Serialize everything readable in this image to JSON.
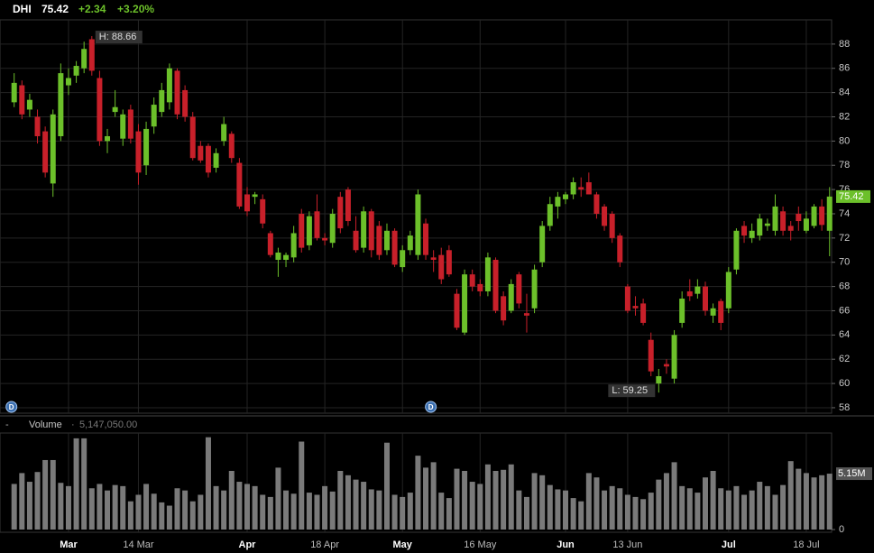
{
  "chart_data": [
    {
      "type": "candlestick",
      "title": "DHI",
      "price_text": "75.42",
      "change": "+2.34",
      "change_pct": "+3.20%",
      "high_annotation": "H: 88.66",
      "low_annotation": "L: 59.25",
      "up_color": "#6cc02a",
      "down_color": "#c8202a",
      "dividend_markers": {
        "label": "D",
        "at": [
          0,
          54
        ]
      },
      "open": [
        83.2,
        84.6,
        82.6,
        82.0,
        80.8,
        76.5,
        80.4,
        84.6,
        85.4,
        86.0,
        88.4,
        85.2,
        80.0,
        82.4,
        80.2,
        82.6,
        80.8,
        78.0,
        81.2,
        82.4,
        83.2,
        85.8,
        84.2,
        82.0,
        79.6,
        79.6,
        77.8,
        80.0,
        80.6,
        78.2,
        75.6,
        75.4,
        75.2,
        72.4,
        70.2,
        70.2,
        70.4,
        74.0,
        71.4,
        74.2,
        72.0,
        71.6,
        75.4,
        76.0,
        72.6,
        71.2,
        74.2,
        73.0,
        71.0,
        72.6,
        69.6,
        71.0,
        70.6,
        73.2,
        70.4,
        70.6,
        71.0,
        67.4,
        64.2,
        69.0,
        68.2,
        67.6,
        70.2,
        67.2,
        66.0,
        69.0,
        65.8,
        66.2,
        70.0,
        73.0,
        74.6,
        75.2,
        75.6,
        76.2,
        76.6,
        75.6,
        74.6,
        74.0,
        72.2,
        68.0,
        66.4,
        66.6,
        63.6,
        60.0,
        61.6,
        60.4,
        65.0,
        67.6,
        67.4,
        68.0,
        65.6,
        66.8,
        66.2,
        69.4,
        73.0,
        72.0,
        72.2,
        73.0,
        72.6,
        74.2,
        73.0,
        74.0,
        72.6,
        73.0,
        74.6,
        72.6
      ],
      "high": [
        85.6,
        85.0,
        83.9,
        82.6,
        81.2,
        82.6,
        86.4,
        86.0,
        86.6,
        88.2,
        88.66,
        85.8,
        81.0,
        84.2,
        82.6,
        83.0,
        81.4,
        81.6,
        83.6,
        84.8,
        86.4,
        86.0,
        84.6,
        82.4,
        80.0,
        79.8,
        79.4,
        82.0,
        80.8,
        78.6,
        76.2,
        75.8,
        75.6,
        72.6,
        71.2,
        70.8,
        73.0,
        74.4,
        74.2,
        75.6,
        72.4,
        74.4,
        75.8,
        76.2,
        73.8,
        74.6,
        74.4,
        73.4,
        73.2,
        72.8,
        71.4,
        72.6,
        76.0,
        73.6,
        71.0,
        71.2,
        71.4,
        67.8,
        69.4,
        69.4,
        68.6,
        70.8,
        70.4,
        67.6,
        68.6,
        69.2,
        67.4,
        69.8,
        73.4,
        75.4,
        75.8,
        75.8,
        77.0,
        77.0,
        77.4,
        75.8,
        74.8,
        74.2,
        72.4,
        68.2,
        67.2,
        67.0,
        64.2,
        61.2,
        62.0,
        64.4,
        67.6,
        68.6,
        68.6,
        68.4,
        66.6,
        67.0,
        69.6,
        72.8,
        73.4,
        73.2,
        74.0,
        73.6,
        75.6,
        74.6,
        73.4,
        74.6,
        74.2,
        74.8,
        75.2,
        76.2
      ],
      "low": [
        82.8,
        81.8,
        82.0,
        79.8,
        77.0,
        75.4,
        80.0,
        83.8,
        84.8,
        85.6,
        85.4,
        79.6,
        79.0,
        82.0,
        79.6,
        79.8,
        76.4,
        77.2,
        80.6,
        82.0,
        82.6,
        81.8,
        81.6,
        78.4,
        78.2,
        77.0,
        77.4,
        79.6,
        78.2,
        74.4,
        73.8,
        74.8,
        72.8,
        70.4,
        68.8,
        69.6,
        70.0,
        70.8,
        71.0,
        71.8,
        71.4,
        71.2,
        72.4,
        73.0,
        70.8,
        70.8,
        70.4,
        70.2,
        70.6,
        69.6,
        69.2,
        70.6,
        70.2,
        70.2,
        69.2,
        68.2,
        68.8,
        64.4,
        64.0,
        67.6,
        67.2,
        67.2,
        65.8,
        64.8,
        65.8,
        66.2,
        64.2,
        65.8,
        69.6,
        72.6,
        73.6,
        74.8,
        75.2,
        75.4,
        75.6,
        73.6,
        72.6,
        71.6,
        69.6,
        65.8,
        65.6,
        64.8,
        60.6,
        59.25,
        60.8,
        60.0,
        64.6,
        66.8,
        67.0,
        65.6,
        65.0,
        64.4,
        65.8,
        69.0,
        71.6,
        71.6,
        71.8,
        72.6,
        72.2,
        72.2,
        71.8,
        72.6,
        72.4,
        72.8,
        72.6,
        70.5
      ],
      "close": [
        84.8,
        82.2,
        83.4,
        80.4,
        77.4,
        82.2,
        85.6,
        85.2,
        86.2,
        87.6,
        85.8,
        80.0,
        80.4,
        82.8,
        82.2,
        80.2,
        77.4,
        81.0,
        83.0,
        84.2,
        86.0,
        82.2,
        82.0,
        78.6,
        78.4,
        77.4,
        79.0,
        81.4,
        78.6,
        74.6,
        74.2,
        75.6,
        73.2,
        70.6,
        70.8,
        70.6,
        72.4,
        71.2,
        73.8,
        72.0,
        71.8,
        74.0,
        72.8,
        73.4,
        71.0,
        74.2,
        71.0,
        70.6,
        72.6,
        69.8,
        71.0,
        72.2,
        75.6,
        70.6,
        70.2,
        68.6,
        69.0,
        64.6,
        69.0,
        68.0,
        67.6,
        70.4,
        66.0,
        65.2,
        68.2,
        66.6,
        65.6,
        69.4,
        73.0,
        74.8,
        75.4,
        75.6,
        76.6,
        76.0,
        75.6,
        74.0,
        73.0,
        72.0,
        70.0,
        66.0,
        66.2,
        65.0,
        61.0,
        60.6,
        61.4,
        64.0,
        67.0,
        67.2,
        68.0,
        66.0,
        66.2,
        65.0,
        69.2,
        72.6,
        72.2,
        72.6,
        73.6,
        73.2,
        74.6,
        72.6,
        72.6,
        73.4,
        73.6,
        74.6,
        73.08,
        75.42
      ],
      "ylim": [
        57.55,
        90.0
      ],
      "yticks": [
        58,
        60,
        62,
        64,
        66,
        68,
        70,
        72,
        74,
        76,
        78,
        80,
        82,
        84,
        86,
        88
      ],
      "xticks": [
        {
          "value": 7,
          "label": "Mar"
        },
        {
          "value": 16,
          "label": "14 Mar"
        },
        {
          "value": 30,
          "label": "Apr"
        },
        {
          "value": 40,
          "label": "18 Apr"
        },
        {
          "value": 50,
          "label": "May"
        },
        {
          "value": 60,
          "label": "16 May"
        },
        {
          "value": 71,
          "label": "Jun"
        },
        {
          "value": 79,
          "label": "13 Jun"
        },
        {
          "value": 92,
          "label": "Jul"
        },
        {
          "value": 102,
          "label": "18 Jul"
        }
      ],
      "grid": true
    },
    {
      "type": "volume",
      "title": "Volume",
      "last_text": "5,147,050.00",
      "last_label": "5.15M",
      "color": "#7a7a7a",
      "values": [
        4200000,
        5200000,
        4400000,
        5300000,
        6400000,
        6400000,
        4300000,
        4000000,
        8400000,
        8400000,
        3800000,
        4200000,
        3600000,
        4100000,
        4000000,
        2600000,
        3200000,
        4200000,
        3300000,
        2500000,
        2200000,
        3800000,
        3600000,
        2600000,
        3200000,
        8500000,
        4000000,
        3600000,
        5400000,
        4400000,
        4200000,
        4000000,
        3200000,
        3000000,
        5700000,
        3600000,
        3300000,
        8100000,
        3400000,
        3200000,
        4000000,
        3500000,
        5400000,
        5000000,
        4600000,
        4400000,
        3700000,
        3600000,
        8000000,
        3200000,
        3000000,
        3400000,
        6800000,
        5700000,
        6200000,
        3400000,
        2900000,
        5600000,
        5400000,
        4400000,
        4200000,
        6000000,
        5400000,
        5500000,
        6000000,
        3600000,
        3000000,
        5200000,
        5000000,
        4100000,
        3700000,
        3600000,
        2900000,
        2600000,
        5200000,
        4800000,
        3600000,
        4000000,
        3800000,
        3200000,
        3000000,
        2800000,
        3400000,
        4600000,
        5200000,
        6200000,
        4000000,
        3800000,
        3400000,
        4800000,
        5400000,
        3800000,
        3600000,
        4000000,
        3200000,
        3600000,
        4400000,
        4000000,
        3200000,
        4100000,
        6300000,
        5600000,
        5200000,
        4800000,
        5000000,
        5147050
      ],
      "ylim": [
        0,
        8890000
      ],
      "yticks": [
        0
      ]
    }
  ]
}
